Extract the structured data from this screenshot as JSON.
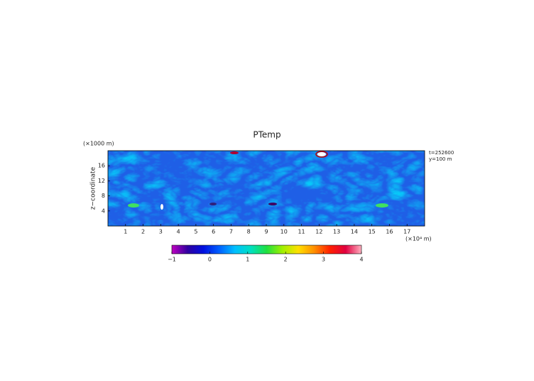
{
  "chart_data": {
    "type": "field",
    "title": "PTemp",
    "y_unit": "(×1000 m)",
    "ylabel": "z−coordinate",
    "x_unit": "(×10⁴ m)",
    "annotations": [
      "t=252600",
      "y=100 m"
    ],
    "xlim": [
      0,
      18
    ],
    "xticks": [
      1,
      2,
      3,
      4,
      5,
      6,
      7,
      8,
      9,
      10,
      11,
      12,
      13,
      14,
      15,
      16,
      17
    ],
    "ylim": [
      0,
      20
    ],
    "yticks": [
      4,
      8,
      12,
      16
    ],
    "colorbar": {
      "clim": [
        -1,
        4
      ],
      "ticks": [
        {
          "value": -1,
          "label": "−1"
        },
        0,
        1,
        2,
        3,
        4
      ],
      "colormap": [
        "#c000c0",
        "#3000a0",
        "#0010e0",
        "#0060ff",
        "#00c0ff",
        "#00e0c0",
        "#20e040",
        "#a0f000",
        "#ffe000",
        "#ff9000",
        "#ff2000",
        "#e00040",
        "#ffb0c0"
      ]
    }
  }
}
